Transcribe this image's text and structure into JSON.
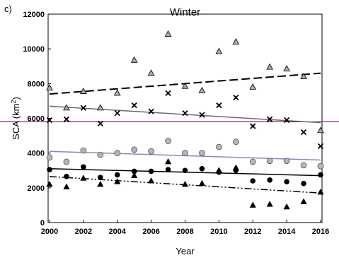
{
  "chart_data": {
    "type": "scatter",
    "panel_label": "c)",
    "title": "Winter",
    "xlabel": "Year",
    "ylabel": "SCA (km²)",
    "ylabel_main": "SCA (km",
    "ylabel_sup": "2",
    "ylabel_close": ")",
    "xlim": [
      2000,
      2016
    ],
    "ylim": [
      0,
      12000
    ],
    "x_ticks": [
      "2000",
      "2002",
      "2004",
      "2006",
      "2008",
      "2010",
      "2012",
      "2014",
      "2016"
    ],
    "y_ticks": [
      "0",
      "2000",
      "4000",
      "6000",
      "8000",
      "10000",
      "12000"
    ],
    "reference_line": {
      "y": 5800,
      "color": "#7a0a6a"
    },
    "series": [
      {
        "marker": "triangle-gray",
        "color": "#a9a9a9",
        "x": [
          2000,
          2001,
          2002,
          2003,
          2004,
          2005,
          2006,
          2007,
          2008,
          2009,
          2010,
          2011,
          2012,
          2013,
          2014,
          2015,
          2016
        ],
        "y": [
          7750,
          6600,
          7550,
          6600,
          7450,
          9350,
          8600,
          10850,
          7850,
          7600,
          9850,
          10400,
          7800,
          8950,
          8850,
          8400,
          5300
        ],
        "trend": {
          "y_start": 7400,
          "y_end": 8600,
          "style": "dashed",
          "color": "#000000"
        }
      },
      {
        "marker": "x",
        "color": "#000000",
        "x": [
          2000,
          2001,
          2002,
          2003,
          2004,
          2005,
          2006,
          2007,
          2008,
          2009,
          2010,
          2011,
          2012,
          2013,
          2014,
          2015,
          2016
        ],
        "y": [
          5900,
          5950,
          6600,
          5700,
          6300,
          6750,
          6400,
          7450,
          6300,
          6200,
          6750,
          7200,
          5550,
          5950,
          5900,
          5200,
          4400
        ],
        "trend": {
          "y_start": 6700,
          "y_end": 5750,
          "style": "solid",
          "color": "#6b6b6b"
        }
      },
      {
        "marker": "circle-gray",
        "color": "#b5b5b5",
        "x": [
          2000,
          2001,
          2002,
          2003,
          2004,
          2005,
          2006,
          2007,
          2008,
          2009,
          2010,
          2011,
          2012,
          2013,
          2014,
          2015,
          2016
        ],
        "y": [
          3750,
          3500,
          4150,
          3900,
          4000,
          4200,
          4100,
          4700,
          4000,
          4000,
          4350,
          4650,
          3500,
          3550,
          3550,
          3300,
          3250
        ],
        "trend": {
          "y_start": 4100,
          "y_end": 3600,
          "style": "solid",
          "color": "#8f86b8"
        }
      },
      {
        "marker": "circle-black",
        "color": "#000000",
        "x": [
          2000,
          2001,
          2002,
          2003,
          2004,
          2005,
          2006,
          2007,
          2008,
          2009,
          2010,
          2011,
          2012,
          2013,
          2014,
          2015,
          2016
        ],
        "y": [
          3050,
          2650,
          3200,
          2600,
          2750,
          2950,
          2950,
          3050,
          3000,
          3100,
          2900,
          3000,
          2400,
          2450,
          2350,
          2250,
          2750
        ],
        "trend": {
          "y_start": 3100,
          "y_end": 2700,
          "style": "solid",
          "color": "#000000"
        }
      },
      {
        "marker": "triangle-black",
        "color": "#000000",
        "x": [
          2000,
          2001,
          2002,
          2003,
          2004,
          2005,
          2006,
          2007,
          2008,
          2009,
          2010,
          2011,
          2012,
          2013,
          2014,
          2015,
          2016
        ],
        "y": [
          2200,
          2050,
          2550,
          2200,
          2350,
          2700,
          2400,
          3500,
          2200,
          2250,
          3000,
          3150,
          1000,
          1050,
          900,
          1200,
          1750
        ],
        "trend": {
          "y_start": 2650,
          "y_end": 1700,
          "style": "dashdotdot",
          "color": "#000000"
        }
      }
    ],
    "grid": false,
    "legend": "none"
  }
}
